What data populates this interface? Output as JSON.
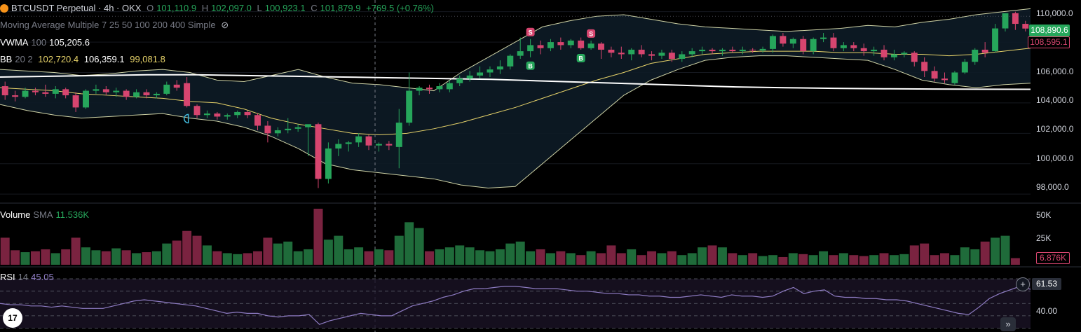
{
  "header": {
    "symbol": "BTCUSDT Perpetual · 4h · OKX",
    "o_label": "O",
    "o_value": "101,110.9",
    "h_label": "H",
    "h_value": "102,097.0",
    "l_label": "L",
    "l_value": "100,923.1",
    "c_label": "C",
    "c_value": "101,879.9",
    "change": "+769.5 (+0.76%)"
  },
  "indicators": {
    "ma_multiple": "Moving Average Multiple 7 25 50 100 200 400 Simple",
    "vwma_label": "VWMA",
    "vwma_param": "100",
    "vwma_value": "105,205.6",
    "bb_label": "BB",
    "bb_params": "20 2",
    "bb_basis": "102,720.4",
    "bb_upper": "106,359.1",
    "bb_lower": "99,081.8",
    "volume_label": "Volume",
    "volume_sma_label": "SMA",
    "volume_sma_value": "11.536K",
    "rsi_label": "RSI",
    "rsi_param": "14",
    "rsi_value": "45.05"
  },
  "price_axis": {
    "ticks": [
      "110,000.0",
      "108,000.0",
      "106,000.0",
      "104,000.0",
      "102,000.0",
      "100,000.0",
      "98,000.0"
    ],
    "current_price": "108,890.6",
    "second_tag": "108,595.1"
  },
  "volume_axis": {
    "ticks": [
      "50K",
      "25K"
    ],
    "current": "6.876K"
  },
  "rsi_axis": {
    "ticks": [
      "40.00"
    ],
    "current": "61.53"
  },
  "colors": {
    "up": "#26a65b",
    "down": "#d7456f",
    "vol_up": "#1f6b3a",
    "vol_down": "#7a2340",
    "bb_band": "#cfd3a6",
    "bb_basis": "#e7d36a",
    "vwma": "#ffffff",
    "rsi": "#8e7cc3"
  },
  "icons": {
    "logo": "tradingview-logo",
    "eye": "eye-off-icon",
    "plus": "plus-circle-icon",
    "scroll": "double-chevron-right-icon"
  },
  "logo_text": "17",
  "scroll_glyph": "»",
  "chart_data": {
    "type": "candlestick",
    "timeframe": "4h",
    "price_range": [
      97500,
      110400
    ],
    "candles": [
      [
        105100,
        105400,
        104200,
        104500
      ],
      [
        104500,
        104800,
        104100,
        104400
      ],
      [
        104400,
        105000,
        104300,
        104800
      ],
      [
        104800,
        105000,
        104500,
        104700
      ],
      [
        104700,
        105200,
        104400,
        104600
      ],
      [
        104600,
        105100,
        104300,
        104900
      ],
      [
        104900,
        105000,
        104300,
        104500
      ],
      [
        104500,
        104700,
        103400,
        103700
      ],
      [
        103700,
        104900,
        103600,
        104800
      ],
      [
        104800,
        105200,
        104600,
        104900
      ],
      [
        104900,
        105100,
        104500,
        104700
      ],
      [
        104700,
        105000,
        104400,
        104800
      ],
      [
        104800,
        104900,
        104200,
        104400
      ],
      [
        104400,
        104900,
        104300,
        104700
      ],
      [
        104700,
        104900,
        104300,
        104500
      ],
      [
        104500,
        104700,
        104300,
        104600
      ],
      [
        104600,
        105400,
        104500,
        105200
      ],
      [
        105200,
        105500,
        104800,
        105000
      ],
      [
        105300,
        105700,
        103700,
        103800
      ],
      [
        103800,
        103900,
        103000,
        103200
      ],
      [
        103200,
        103500,
        103000,
        103300
      ],
      [
        103300,
        103400,
        102900,
        103100
      ],
      [
        103100,
        103300,
        102900,
        103200
      ],
      [
        103200,
        103500,
        103000,
        103400
      ],
      [
        103400,
        103500,
        103000,
        103200
      ],
      [
        103200,
        103300,
        102200,
        102500
      ],
      [
        102500,
        102800,
        101400,
        102000
      ],
      [
        102000,
        102400,
        101800,
        102200
      ],
      [
        102200,
        103000,
        102000,
        102300
      ],
      [
        102300,
        102600,
        102100,
        102400
      ],
      [
        102400,
        102500,
        100500,
        102600
      ],
      [
        102600,
        102700,
        98400,
        99000
      ],
      [
        99000,
        101400,
        98700,
        101000
      ],
      [
        101000,
        101600,
        100500,
        101300
      ],
      [
        101300,
        101500,
        100800,
        101400
      ],
      [
        101400,
        102000,
        101100,
        101800
      ],
      [
        101800,
        101900,
        100900,
        101200
      ],
      [
        101200,
        101400,
        100800,
        101300
      ],
      [
        101300,
        101500,
        100900,
        101200
      ],
      [
        101100,
        103600,
        99700,
        102700
      ],
      [
        102700,
        106000,
        102500,
        104800
      ],
      [
        104800,
        105100,
        104500,
        105000
      ],
      [
        105000,
        105200,
        104600,
        104900
      ],
      [
        104900,
        105300,
        104700,
        105100
      ],
      [
        104900,
        105500,
        104700,
        105300
      ],
      [
        105300,
        105800,
        105100,
        105600
      ],
      [
        105600,
        106100,
        105400,
        105800
      ],
      [
        105800,
        106400,
        105600,
        106000
      ],
      [
        106000,
        106400,
        105700,
        106200
      ],
      [
        106200,
        106800,
        105900,
        106400
      ],
      [
        106400,
        107200,
        106200,
        107100
      ],
      [
        107100,
        108300,
        106900,
        107400
      ],
      [
        107400,
        108200,
        107000,
        107800
      ],
      [
        107800,
        108100,
        107200,
        107600
      ],
      [
        107600,
        108200,
        107400,
        108000
      ],
      [
        108000,
        108300,
        107500,
        107800
      ],
      [
        107800,
        108200,
        107600,
        108100
      ],
      [
        108100,
        108300,
        107500,
        107600
      ],
      [
        107600,
        108100,
        107500,
        107900
      ],
      [
        107900,
        108000,
        106900,
        107500
      ],
      [
        107500,
        107700,
        107000,
        107300
      ],
      [
        107300,
        107700,
        106900,
        107200
      ],
      [
        107200,
        107600,
        106800,
        107500
      ],
      [
        107500,
        107800,
        107000,
        107200
      ],
      [
        107200,
        107400,
        106800,
        107100
      ],
      [
        107100,
        107500,
        106900,
        107300
      ],
      [
        107300,
        107500,
        106700,
        106900
      ],
      [
        106900,
        107400,
        106700,
        107200
      ],
      [
        107200,
        107600,
        107000,
        107400
      ],
      [
        107400,
        107700,
        107200,
        107500
      ],
      [
        107500,
        107600,
        107200,
        107400
      ],
      [
        107400,
        107600,
        107100,
        107500
      ],
      [
        107500,
        107700,
        107300,
        107400
      ],
      [
        107400,
        107700,
        107200,
        107500
      ],
      [
        107500,
        107600,
        107300,
        107450
      ],
      [
        107450,
        107700,
        107300,
        107550
      ],
      [
        107550,
        108500,
        107300,
        108400
      ],
      [
        108400,
        108600,
        107700,
        107900
      ],
      [
        107900,
        108300,
        107600,
        108200
      ],
      [
        108200,
        108400,
        107200,
        107400
      ],
      [
        107400,
        108300,
        107200,
        108200
      ],
      [
        108200,
        108600,
        108000,
        108300
      ],
      [
        108300,
        108600,
        107400,
        107600
      ],
      [
        107600,
        108000,
        107400,
        107800
      ],
      [
        107800,
        108000,
        107400,
        107600
      ],
      [
        107600,
        107900,
        107100,
        107400
      ],
      [
        107400,
        107700,
        107100,
        107500
      ],
      [
        107500,
        107800,
        106800,
        107000
      ],
      [
        107000,
        107500,
        106800,
        107200
      ],
      [
        107200,
        107400,
        107000,
        107300
      ],
      [
        107300,
        107400,
        106400,
        106700
      ],
      [
        106700,
        107000,
        105700,
        106100
      ],
      [
        106100,
        106400,
        105400,
        105600
      ],
      [
        105600,
        106000,
        105300,
        105500
      ],
      [
        105300,
        106100,
        105200,
        106000
      ],
      [
        106000,
        106900,
        105900,
        106700
      ],
      [
        106700,
        107600,
        106500,
        107500
      ],
      [
        107500,
        108000,
        107000,
        107300
      ],
      [
        107400,
        109200,
        107300,
        108900
      ],
      [
        108900,
        109900,
        108700,
        109900
      ],
      [
        109900,
        110000,
        108800,
        109200
      ],
      [
        109200,
        109400,
        108700,
        108890.6
      ]
    ],
    "vwma_100": [
      105700,
      105750,
      105800,
      105850,
      105850,
      105800,
      105750,
      105700,
      105650,
      105600,
      105550,
      105450,
      105350,
      105250,
      105150,
      105050,
      105000,
      104960,
      104930,
      104910,
      104900,
      104895
    ],
    "bb_upper": [
      106200,
      106100,
      106000,
      105800,
      105900,
      106100,
      106200,
      106000,
      105500,
      105400,
      105800,
      106200,
      105700,
      105300,
      105200,
      105000,
      104800,
      106000,
      107000,
      108000,
      109000,
      109400,
      109700,
      109800,
      109500,
      109200,
      109000,
      108900,
      108800,
      108700,
      108800,
      108900,
      109100,
      109000,
      109300,
      109500,
      109800,
      110000,
      110200
    ],
    "bb_lower": [
      103900,
      103500,
      103200,
      103000,
      103100,
      103200,
      103300,
      103000,
      102800,
      102400,
      101800,
      101000,
      100000,
      99600,
      99400,
      99200,
      99000,
      98600,
      98400,
      98500,
      100000,
      101500,
      103000,
      104500,
      105500,
      106200,
      106800,
      107000,
      107100,
      107100,
      107000,
      106900,
      106800,
      106200,
      105500,
      105200,
      105000,
      105200,
      105300
    ],
    "bb_basis": [
      105000,
      104900,
      104800,
      104600,
      104500,
      104400,
      104300,
      104100,
      104000,
      103600,
      103000,
      102600,
      102300,
      102000,
      101900,
      102000,
      102300,
      102700,
      103200,
      103700,
      104300,
      104900,
      105500,
      106000,
      106600,
      106900,
      107200,
      107300,
      107400,
      107400,
      107400,
      107300,
      107300,
      107200,
      107200,
      107100,
      107200,
      107400,
      107600
    ],
    "volume": [
      28,
      15,
      13,
      14,
      16,
      12,
      16,
      28,
      18,
      15,
      14,
      17,
      15,
      12,
      13,
      14,
      22,
      25,
      35,
      30,
      20,
      14,
      12,
      11,
      12,
      14,
      28,
      22,
      24,
      14,
      16,
      58,
      26,
      30,
      16,
      18,
      14,
      16,
      15,
      30,
      44,
      38,
      14,
      16,
      18,
      20,
      18,
      15,
      14,
      16,
      22,
      24,
      14,
      16,
      12,
      14,
      12,
      10,
      14,
      12,
      20,
      12,
      16,
      10,
      14,
      12,
      14,
      10,
      12,
      18,
      20,
      18,
      12,
      10,
      12,
      9,
      10,
      8,
      12,
      11,
      10,
      14,
      10,
      12,
      10,
      9,
      10,
      12,
      10,
      11,
      20,
      22,
      10,
      12,
      10,
      18,
      16,
      24,
      28,
      30,
      6.876
    ],
    "rsi_series": [
      50,
      49,
      49,
      48,
      48,
      47,
      48,
      47,
      46,
      46,
      46,
      48,
      50,
      52,
      53,
      52,
      51,
      50,
      49,
      48,
      46,
      44,
      42,
      43,
      42,
      42,
      40,
      39,
      40,
      40,
      41,
      33,
      36,
      38,
      40,
      42,
      41,
      40,
      40,
      44,
      48,
      50,
      52,
      55,
      57,
      60,
      62,
      62,
      63,
      64,
      64,
      63,
      62,
      62,
      62,
      61,
      60,
      60,
      59,
      58,
      58,
      57,
      57,
      56,
      56,
      55,
      55,
      56,
      57,
      56,
      55,
      57,
      56,
      56,
      55,
      56,
      60,
      63,
      58,
      60,
      61,
      56,
      55,
      55,
      54,
      54,
      53,
      53,
      52,
      50,
      48,
      46,
      44,
      42,
      41,
      47,
      54,
      58,
      61,
      64,
      61.53
    ],
    "rsi_ticks": [
      40
    ],
    "markers": [
      {
        "candle": 18,
        "type": "circle-marker"
      },
      {
        "candle": 52,
        "label": "S"
      },
      {
        "candle": 58,
        "label": "S"
      },
      {
        "candle": 52,
        "label": "B"
      },
      {
        "candle": 57,
        "label": "B"
      }
    ]
  }
}
